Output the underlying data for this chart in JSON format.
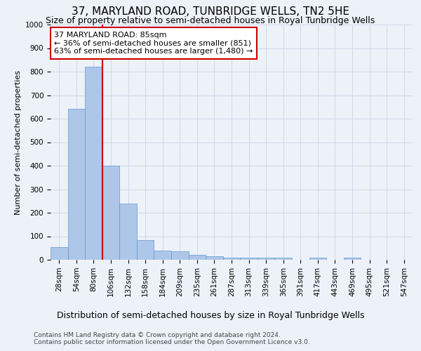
{
  "title": "37, MARYLAND ROAD, TUNBRIDGE WELLS, TN2 5HE",
  "subtitle": "Size of property relative to semi-detached houses in Royal Tunbridge Wells",
  "xlabel_bottom": "Distribution of semi-detached houses by size in Royal Tunbridge Wells",
  "ylabel": "Number of semi-detached properties",
  "footnote1": "Contains HM Land Registry data © Crown copyright and database right 2024.",
  "footnote2": "Contains public sector information licensed under the Open Government Licence v3.0.",
  "categories": [
    "28sqm",
    "54sqm",
    "80sqm",
    "106sqm",
    "132sqm",
    "158sqm",
    "184sqm",
    "209sqm",
    "235sqm",
    "261sqm",
    "287sqm",
    "313sqm",
    "339sqm",
    "365sqm",
    "391sqm",
    "417sqm",
    "443sqm",
    "469sqm",
    "495sqm",
    "521sqm",
    "547sqm"
  ],
  "values": [
    55,
    643,
    820,
    400,
    238,
    83,
    40,
    37,
    22,
    15,
    10,
    8,
    10,
    8,
    0,
    10,
    0,
    8,
    0,
    0,
    0
  ],
  "bar_color": "#aec6e8",
  "bar_edge_color": "#5b9bd5",
  "ylim": [
    0,
    1000
  ],
  "yticks": [
    0,
    100,
    200,
    300,
    400,
    500,
    600,
    700,
    800,
    900,
    1000
  ],
  "property_bar_index": 2,
  "vline_color": "#cc0000",
  "annotation_text": "37 MARYLAND ROAD: 85sqm\n← 36% of semi-detached houses are smaller (851)\n63% of semi-detached houses are larger (1,480) →",
  "annotation_box_color": "#ffffff",
  "annotation_box_edge_color": "#cc0000",
  "grid_color": "#d0d8e8",
  "background_color": "#edf2f8",
  "title_fontsize": 11,
  "subtitle_fontsize": 9,
  "ylabel_fontsize": 8,
  "tick_fontsize": 7.5,
  "annotation_fontsize": 8,
  "footnote_fontsize": 6.5
}
